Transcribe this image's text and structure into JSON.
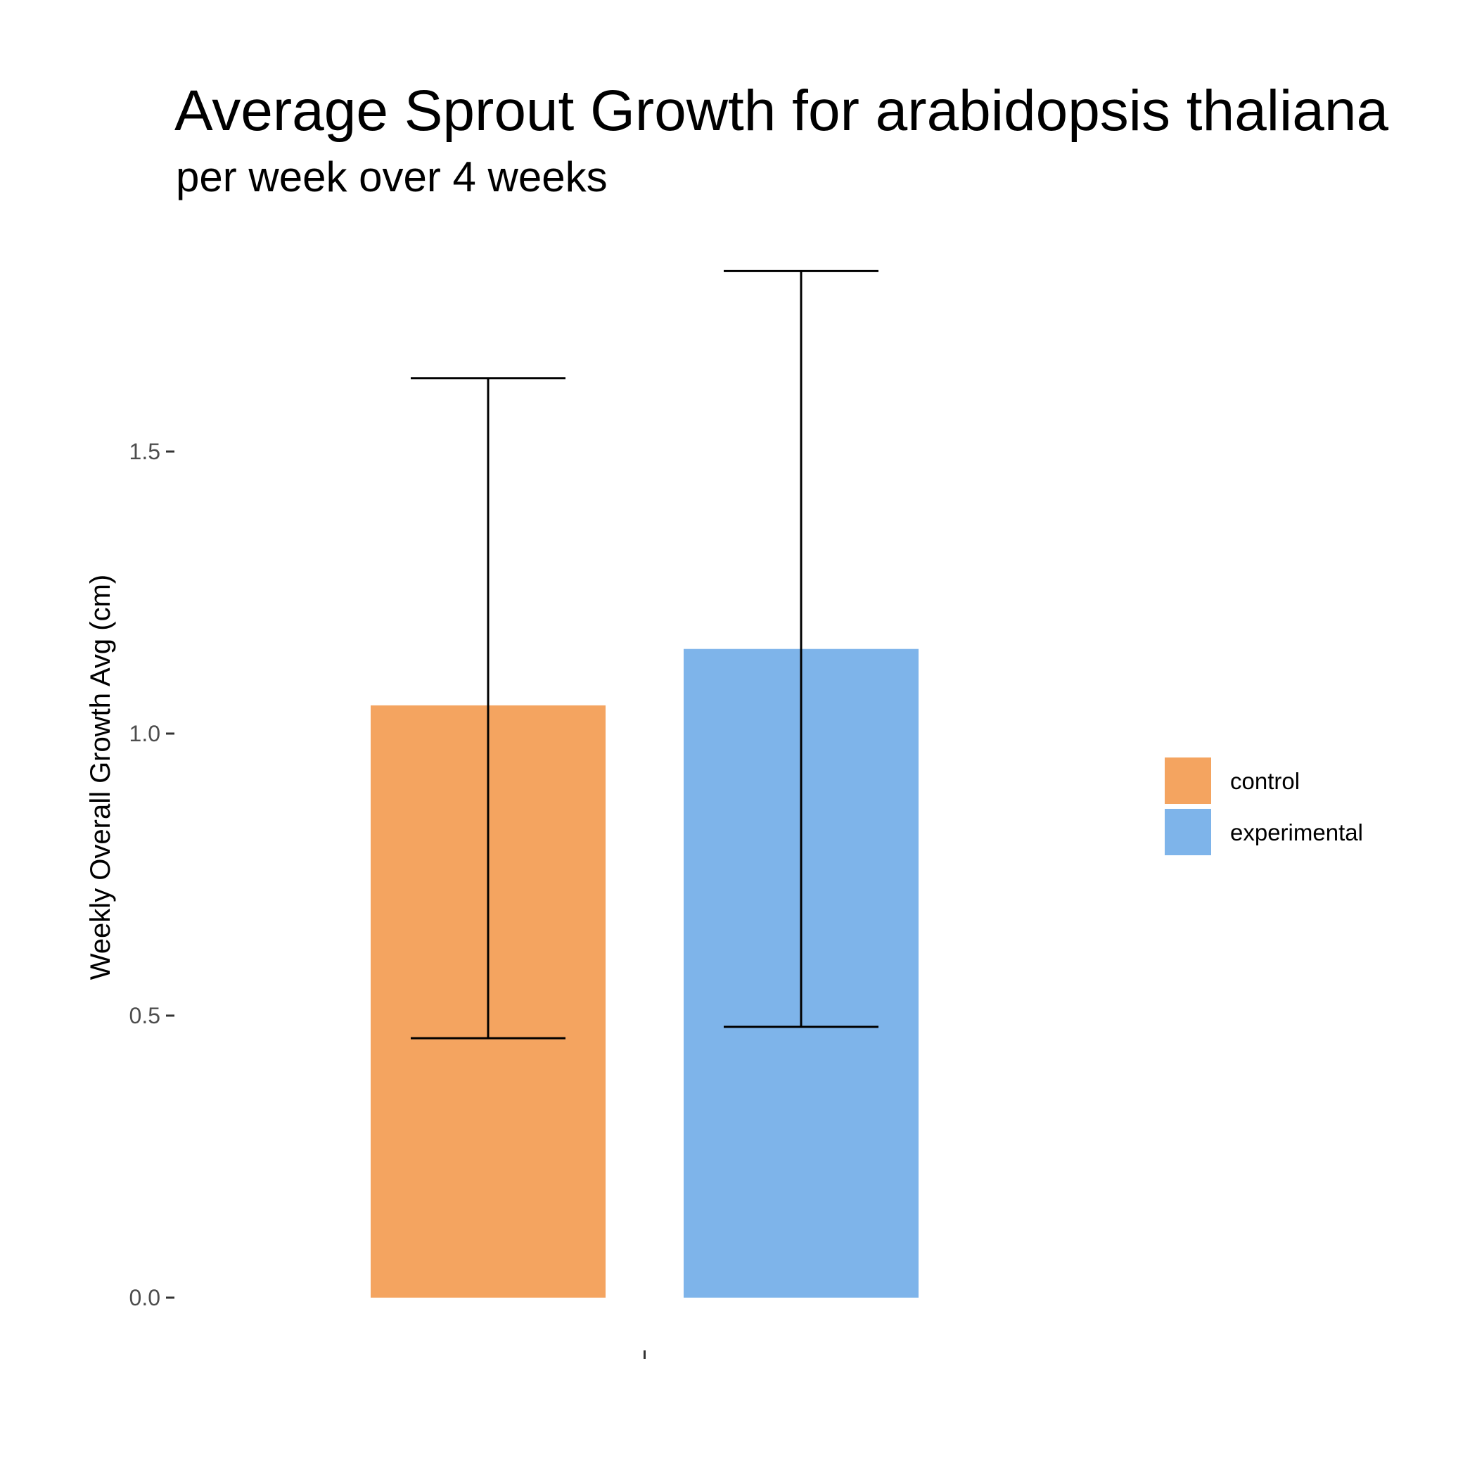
{
  "chart_data": {
    "type": "bar",
    "title": "Average Sprout Growth for arabidopsis thaliana",
    "subtitle": "per week over 4 weeks",
    "xlabel": "",
    "ylabel": "Weekly Overall Growth Avg (cm)",
    "categories": [
      ""
    ],
    "ylim": [
      0,
      1.85
    ],
    "yticks": [
      0.0,
      0.5,
      1.0,
      1.5
    ],
    "ytick_labels": [
      "0.0",
      "0.5",
      "1.0",
      "1.5"
    ],
    "grid": false,
    "legend_position": "right",
    "series": [
      {
        "name": "control",
        "value": 1.05,
        "error_low": 0.46,
        "error_high": 1.63,
        "color": "#F4A460"
      },
      {
        "name": "experimental",
        "value": 1.15,
        "error_low": 0.48,
        "error_high": 1.82,
        "color": "#7EB4EA"
      }
    ]
  }
}
